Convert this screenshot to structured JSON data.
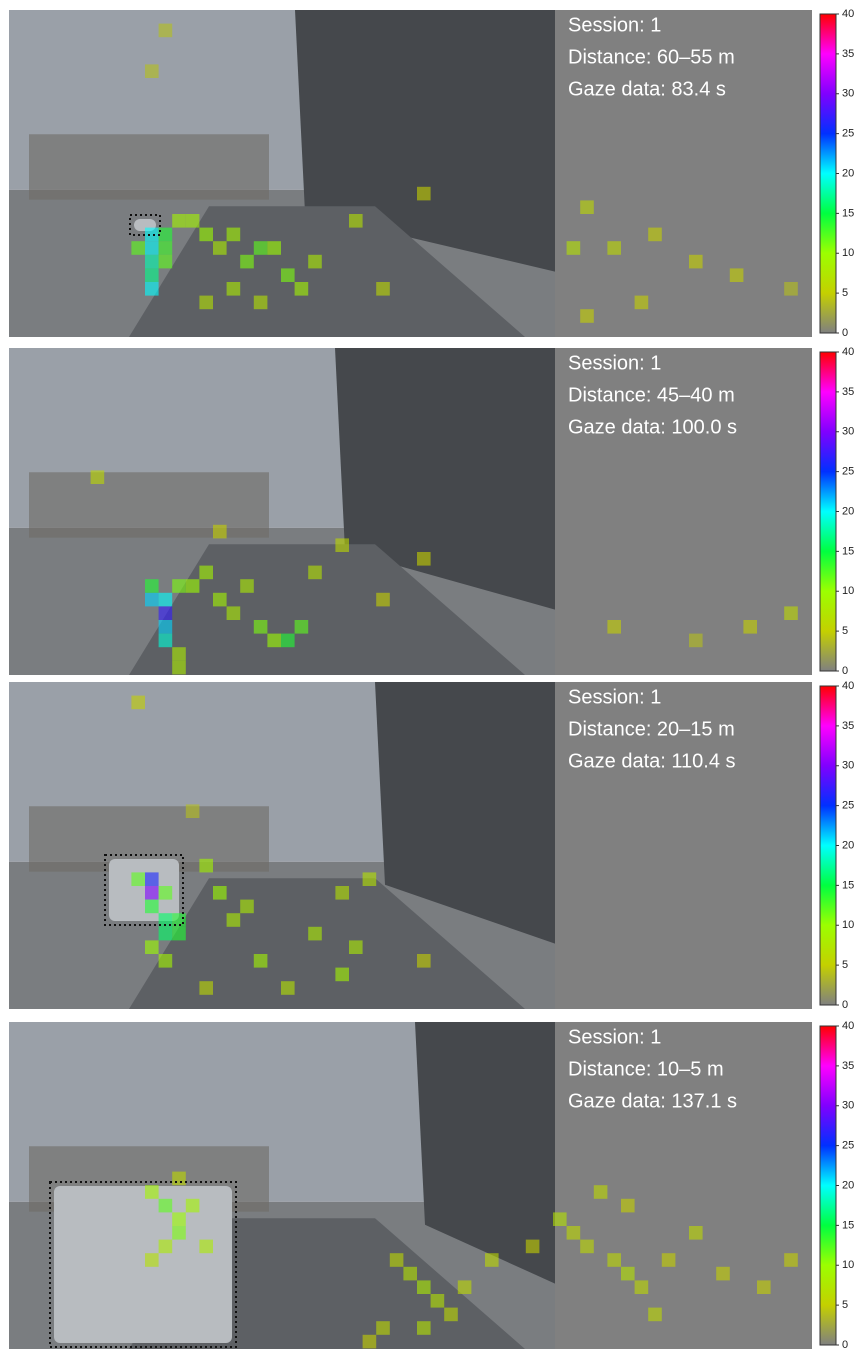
{
  "panels": [
    {
      "session": "Session: 1",
      "distance": "Distance: 60–55 m",
      "gaze": "Gaze data: 83.4 s",
      "cells": [
        [
          10,
          16,
          20
        ],
        [
          10,
          17,
          20
        ],
        [
          10,
          18,
          18
        ],
        [
          10,
          19,
          17
        ],
        [
          10,
          20,
          20
        ],
        [
          11,
          16,
          14
        ],
        [
          11,
          17,
          13
        ],
        [
          11,
          18,
          12
        ],
        [
          9,
          17,
          12
        ],
        [
          12,
          15,
          9
        ],
        [
          13,
          15,
          9
        ],
        [
          14,
          16,
          10
        ],
        [
          15,
          17,
          8
        ],
        [
          16,
          16,
          9
        ],
        [
          17,
          18,
          11
        ],
        [
          18,
          17,
          12
        ],
        [
          19,
          17,
          10
        ],
        [
          20,
          19,
          11
        ],
        [
          21,
          20,
          9
        ],
        [
          22,
          18,
          8
        ],
        [
          16,
          20,
          8
        ],
        [
          14,
          21,
          7
        ],
        [
          18,
          21,
          7
        ],
        [
          10,
          4,
          4
        ],
        [
          11,
          1,
          4
        ],
        [
          42,
          14,
          6
        ],
        [
          41,
          17,
          7
        ],
        [
          44,
          17,
          6
        ],
        [
          47,
          16,
          5
        ],
        [
          50,
          18,
          5
        ],
        [
          53,
          19,
          5
        ],
        [
          57,
          20,
          4
        ],
        [
          42,
          22,
          5
        ],
        [
          46,
          21,
          5
        ],
        [
          25,
          15,
          7
        ],
        [
          27,
          20,
          6
        ],
        [
          30,
          13,
          5
        ]
      ]
    },
    {
      "session": "Session: 1",
      "distance": "Distance: 45–40 m",
      "gaze": "Gaze data: 100.0 s",
      "cells": [
        [
          10,
          18,
          21
        ],
        [
          11,
          18,
          20
        ],
        [
          11,
          19,
          27
        ],
        [
          11,
          20,
          21
        ],
        [
          11,
          21,
          19
        ],
        [
          10,
          17,
          14
        ],
        [
          12,
          17,
          11
        ],
        [
          13,
          17,
          10
        ],
        [
          14,
          16,
          9
        ],
        [
          15,
          18,
          9
        ],
        [
          16,
          19,
          8
        ],
        [
          18,
          20,
          11
        ],
        [
          19,
          21,
          10
        ],
        [
          20,
          21,
          14
        ],
        [
          21,
          20,
          12
        ],
        [
          17,
          17,
          8
        ],
        [
          6,
          9,
          6
        ],
        [
          15,
          13,
          5
        ],
        [
          22,
          16,
          7
        ],
        [
          24,
          14,
          6
        ],
        [
          27,
          18,
          5
        ],
        [
          30,
          15,
          5
        ],
        [
          44,
          20,
          5
        ],
        [
          50,
          21,
          4
        ],
        [
          57,
          19,
          6
        ],
        [
          54,
          20,
          5
        ],
        [
          12,
          22,
          8
        ],
        [
          12,
          23,
          8
        ]
      ]
    },
    {
      "session": "Session: 1",
      "distance": "Distance: 20–15 m",
      "gaze": "Gaze data: 110.4 s",
      "cells": [
        [
          10,
          14,
          26
        ],
        [
          10,
          15,
          30
        ],
        [
          9,
          14,
          12
        ],
        [
          11,
          15,
          12
        ],
        [
          10,
          16,
          14
        ],
        [
          11,
          17,
          16
        ],
        [
          11,
          18,
          16
        ],
        [
          12,
          17,
          14
        ],
        [
          12,
          18,
          14
        ],
        [
          10,
          19,
          10
        ],
        [
          11,
          20,
          9
        ],
        [
          14,
          13,
          9
        ],
        [
          15,
          15,
          10
        ],
        [
          16,
          17,
          8
        ],
        [
          17,
          16,
          8
        ],
        [
          18,
          20,
          9
        ],
        [
          22,
          18,
          8
        ],
        [
          24,
          15,
          7
        ],
        [
          25,
          19,
          8
        ],
        [
          24,
          21,
          9
        ],
        [
          26,
          14,
          7
        ],
        [
          9,
          1,
          5
        ],
        [
          13,
          9,
          4
        ],
        [
          14,
          22,
          6
        ],
        [
          20,
          22,
          7
        ],
        [
          30,
          20,
          5
        ]
      ]
    },
    {
      "session": "Session: 1",
      "distance": "Distance: 10–5 m",
      "gaze": "Gaze data: 137.1 s",
      "cells": [
        [
          10,
          12,
          9
        ],
        [
          11,
          13,
          12
        ],
        [
          12,
          14,
          10
        ],
        [
          12,
          15,
          11
        ],
        [
          11,
          16,
          8
        ],
        [
          13,
          13,
          9
        ],
        [
          14,
          16,
          8
        ],
        [
          10,
          17,
          7
        ],
        [
          12,
          11,
          6
        ],
        [
          28,
          17,
          6
        ],
        [
          29,
          18,
          7
        ],
        [
          30,
          19,
          8
        ],
        [
          31,
          20,
          7
        ],
        [
          32,
          21,
          6
        ],
        [
          30,
          22,
          7
        ],
        [
          33,
          19,
          6
        ],
        [
          35,
          17,
          6
        ],
        [
          38,
          16,
          5
        ],
        [
          40,
          14,
          7
        ],
        [
          41,
          15,
          6
        ],
        [
          42,
          16,
          6
        ],
        [
          44,
          17,
          6
        ],
        [
          45,
          18,
          7
        ],
        [
          46,
          19,
          6
        ],
        [
          48,
          17,
          5
        ],
        [
          50,
          15,
          6
        ],
        [
          52,
          18,
          5
        ],
        [
          55,
          19,
          5
        ],
        [
          57,
          17,
          5
        ],
        [
          43,
          12,
          6
        ],
        [
          45,
          13,
          5
        ],
        [
          47,
          21,
          6
        ],
        [
          27,
          22,
          6
        ],
        [
          26,
          23,
          5
        ]
      ]
    }
  ],
  "colorbar": {
    "range": [
      0,
      40
    ],
    "ticks": [
      0,
      5,
      10,
      15,
      20,
      25,
      30,
      35,
      40
    ],
    "colormap": [
      "#808080",
      "#c4d000",
      "#9cff00",
      "#00ff40",
      "#00ffff",
      "#0030ff",
      "#8000ff",
      "#ff00ff",
      "#ff0000"
    ]
  }
}
